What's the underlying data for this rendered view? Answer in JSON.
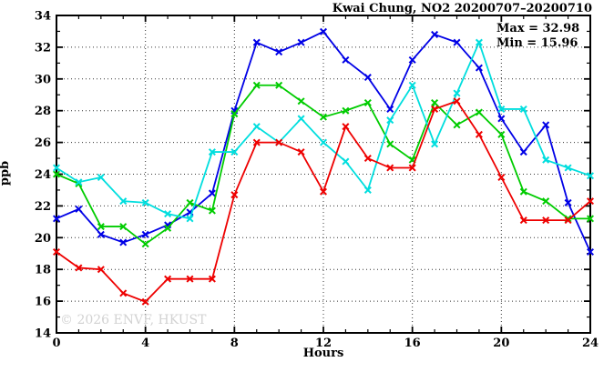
{
  "title": "Kwai Chung, NO2 20200707–20200710",
  "annotations": {
    "max_label": "Max = 32.98",
    "min_label": "Min = 15.96"
  },
  "watermark": "© 2026 ENVF, HKUST",
  "chart_data": {
    "type": "line",
    "title": "Kwai Chung, NO2 20200707–20200710",
    "xlabel": "Hours",
    "ylabel": "ppb",
    "xlim": [
      0,
      24
    ],
    "ylim": [
      14,
      34
    ],
    "x_ticks": [
      0,
      4,
      8,
      12,
      16,
      20,
      24
    ],
    "y_ticks": [
      14,
      16,
      18,
      20,
      22,
      24,
      26,
      28,
      30,
      32,
      34
    ],
    "grid": true,
    "legend_position": "none",
    "marker": "x-cross",
    "max": 32.98,
    "min": 15.96,
    "x": [
      0,
      1,
      2,
      3,
      4,
      5,
      6,
      7,
      8,
      9,
      10,
      11,
      12,
      13,
      14,
      15,
      16,
      17,
      18,
      19,
      20,
      21,
      22,
      23,
      24
    ],
    "series": [
      {
        "name": "series-blue",
        "color": "#0000e6",
        "values": [
          21.2,
          21.8,
          20.2,
          19.7,
          20.2,
          20.8,
          21.6,
          22.8,
          28.0,
          32.3,
          31.7,
          32.3,
          32.98,
          31.2,
          30.1,
          28.1,
          31.2,
          32.8,
          32.3,
          30.7,
          27.5,
          25.4,
          27.1,
          22.2,
          19.1
        ]
      },
      {
        "name": "series-green",
        "color": "#00cc00",
        "values": [
          24.0,
          23.4,
          20.7,
          20.7,
          19.6,
          20.6,
          22.2,
          21.7,
          27.8,
          29.6,
          29.6,
          28.6,
          27.6,
          28.0,
          28.5,
          25.9,
          24.9,
          28.5,
          27.1,
          27.9,
          26.5,
          22.9,
          22.3,
          21.2,
          21.2
        ]
      },
      {
        "name": "series-cyan",
        "color": "#00dede",
        "values": [
          24.4,
          23.5,
          23.8,
          22.3,
          22.2,
          21.5,
          21.2,
          25.4,
          25.4,
          27.0,
          26.0,
          27.5,
          26.0,
          24.8,
          23.0,
          27.4,
          29.6,
          25.9,
          29.1,
          32.3,
          28.1,
          28.1,
          24.9,
          24.4,
          23.9
        ]
      },
      {
        "name": "series-red",
        "color": "#ee0000",
        "values": [
          19.1,
          18.1,
          18.0,
          16.5,
          15.96,
          17.4,
          17.4,
          17.4,
          22.7,
          26.0,
          26.0,
          25.4,
          22.9,
          27.0,
          25.0,
          24.4,
          24.4,
          28.1,
          28.6,
          26.5,
          23.8,
          21.1,
          21.1,
          21.1,
          22.3
        ]
      }
    ]
  }
}
